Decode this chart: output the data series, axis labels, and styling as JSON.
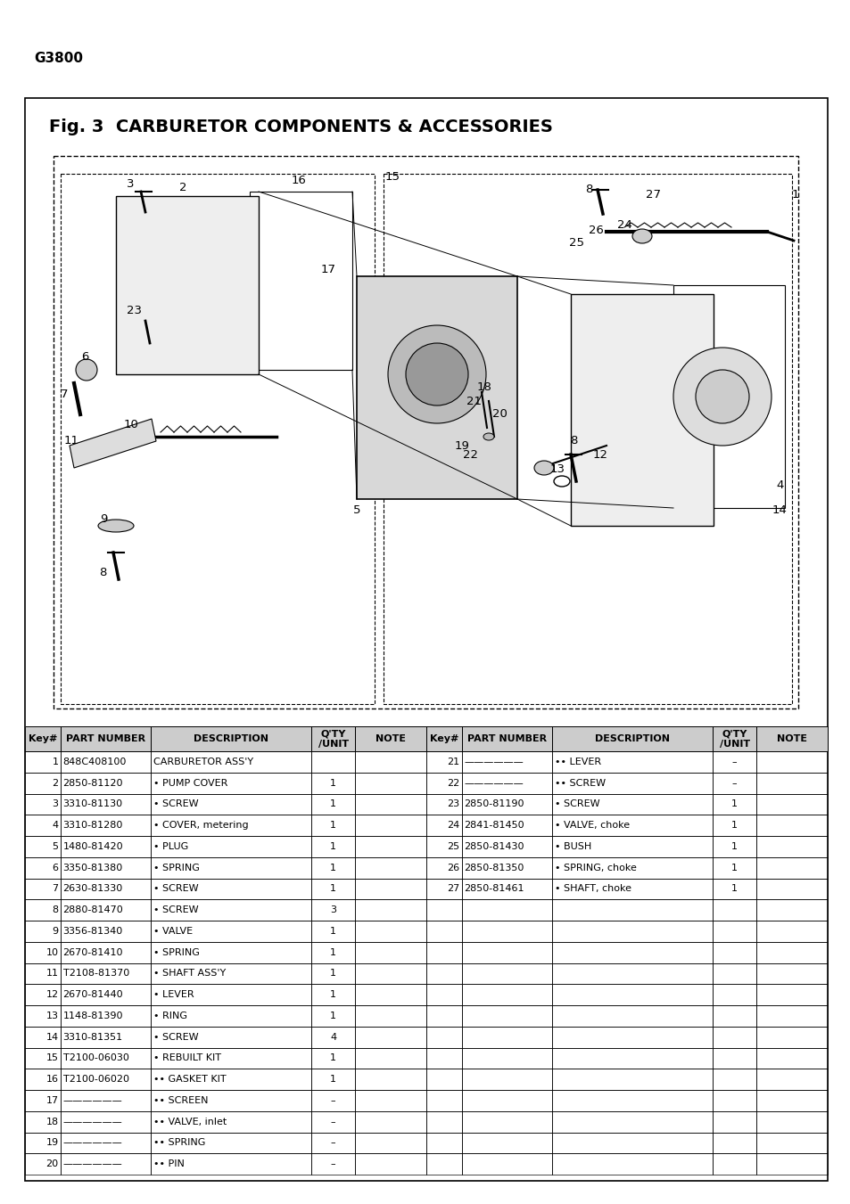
{
  "page_title": "G3800",
  "fig_title": "Fig. 3  CARBURETOR COMPONENTS & ACCESSORIES",
  "left_table": [
    [
      "1",
      "848C408100",
      "CARBURETOR ASS'Y",
      "",
      ""
    ],
    [
      "2",
      "2850-81120",
      "• PUMP COVER",
      "1",
      ""
    ],
    [
      "3",
      "3310-81130",
      "• SCREW",
      "1",
      ""
    ],
    [
      "4",
      "3310-81280",
      "• COVER, metering",
      "1",
      ""
    ],
    [
      "5",
      "1480-81420",
      "• PLUG",
      "1",
      ""
    ],
    [
      "6",
      "3350-81380",
      "• SPRING",
      "1",
      ""
    ],
    [
      "7",
      "2630-81330",
      "• SCREW",
      "1",
      ""
    ],
    [
      "8",
      "2880-81470",
      "• SCREW",
      "3",
      ""
    ],
    [
      "9",
      "3356-81340",
      "• VALVE",
      "1",
      ""
    ],
    [
      "10",
      "2670-81410",
      "• SPRING",
      "1",
      ""
    ],
    [
      "11",
      "T2108-81370",
      "• SHAFT ASS'Y",
      "1",
      ""
    ],
    [
      "12",
      "2670-81440",
      "• LEVER",
      "1",
      ""
    ],
    [
      "13",
      "1148-81390",
      "• RING",
      "1",
      ""
    ],
    [
      "14",
      "3310-81351",
      "• SCREW",
      "4",
      ""
    ],
    [
      "15",
      "T2100-06030",
      "• REBUILT KIT",
      "1",
      ""
    ],
    [
      "16",
      "T2100-06020",
      "•• GASKET KIT",
      "1",
      ""
    ],
    [
      "17",
      "——————",
      "•• SCREEN",
      "–",
      ""
    ],
    [
      "18",
      "——————",
      "•• VALVE, inlet",
      "–",
      ""
    ],
    [
      "19",
      "——————",
      "•• SPRING",
      "–",
      ""
    ],
    [
      "20",
      "——————",
      "•• PIN",
      "–",
      ""
    ]
  ],
  "right_table": [
    [
      "21",
      "——————",
      "•• LEVER",
      "–",
      ""
    ],
    [
      "22",
      "——————",
      "•• SCREW",
      "–",
      ""
    ],
    [
      "23",
      "2850-81190",
      "• SCREW",
      "1",
      ""
    ],
    [
      "24",
      "2841-81450",
      "• VALVE, choke",
      "1",
      ""
    ],
    [
      "25",
      "2850-81430",
      "• BUSH",
      "1",
      ""
    ],
    [
      "26",
      "2850-81350",
      "• SPRING, choke",
      "1",
      ""
    ],
    [
      "27",
      "2850-81461",
      "• SHAFT, choke",
      "1",
      ""
    ]
  ],
  "background_color": "#ffffff"
}
